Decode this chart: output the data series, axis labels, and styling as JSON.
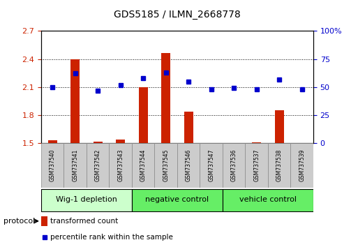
{
  "title": "GDS5185 / ILMN_2668778",
  "samples": [
    "GSM737540",
    "GSM737541",
    "GSM737542",
    "GSM737543",
    "GSM737544",
    "GSM737545",
    "GSM737546",
    "GSM737547",
    "GSM737536",
    "GSM737537",
    "GSM737538",
    "GSM737539"
  ],
  "transformed_counts": [
    1.53,
    2.4,
    1.52,
    1.54,
    2.1,
    2.46,
    1.84,
    1.49,
    1.5,
    1.51,
    1.85,
    1.49
  ],
  "percentile_ranks": [
    50,
    62,
    47,
    52,
    58,
    63,
    55,
    48,
    49,
    48,
    57,
    48
  ],
  "groups": [
    {
      "label": "Wig-1 depletion",
      "start": 0,
      "end": 3
    },
    {
      "label": "negative control",
      "start": 4,
      "end": 7
    },
    {
      "label": "vehicle control",
      "start": 8,
      "end": 11
    }
  ],
  "group_colors": [
    "#ccffcc",
    "#66ee66",
    "#66ee66"
  ],
  "ylim_left": [
    1.5,
    2.7
  ],
  "ylim_right": [
    0,
    100
  ],
  "yticks_left": [
    1.5,
    1.8,
    2.1,
    2.4,
    2.7
  ],
  "yticks_right": [
    0,
    25,
    50,
    75,
    100
  ],
  "ytick_labels_left": [
    "1.5",
    "1.8",
    "2.1",
    "2.4",
    "2.7"
  ],
  "ytick_labels_right": [
    "0",
    "25",
    "50",
    "75",
    "100%"
  ],
  "bar_color": "#cc2200",
  "dot_color": "#0000cc",
  "bar_width": 0.4,
  "tick_color_left": "#cc2200",
  "tick_color_right": "#0000cc",
  "legend_red_label": "transformed count",
  "legend_blue_label": "percentile rank within the sample",
  "protocol_label": "protocol"
}
